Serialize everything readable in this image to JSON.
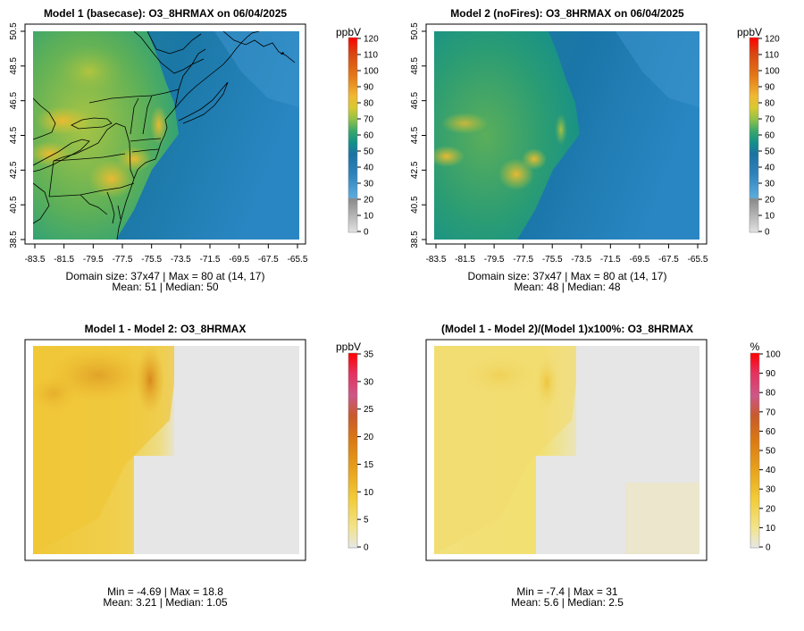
{
  "chart_data": [
    {
      "type": "heatmap",
      "title": "Model 1 (basecase): O3_8HRMAX on 06/04/2025",
      "x_tick_labels": [
        "-83.5",
        "-81.5",
        "-79.5",
        "-77.5",
        "-75.5",
        "-73.5",
        "-71.5",
        "-69.5",
        "-67.5",
        "-65.5"
      ],
      "y_tick_labels": [
        "38.5",
        "40.5",
        "42.5",
        "44.5",
        "46.5",
        "48.5",
        "50.5"
      ],
      "xlim": [
        -84,
        -65
      ],
      "ylim": [
        38.5,
        50.5
      ],
      "unit": "ppbV",
      "colorbar_ticks": [
        "0",
        "10",
        "20",
        "30",
        "40",
        "50",
        "60",
        "70",
        "80",
        "90",
        "100",
        "110",
        "120"
      ],
      "colorbar_range": [
        0,
        120
      ],
      "domain_line": "Domain size: 37x47 | Max = 80 at (14, 17)",
      "stats_line": "Mean: 51 |  Median: 50",
      "stats": {
        "max": 80,
        "mean": 51,
        "median": 50
      }
    },
    {
      "type": "heatmap",
      "title": "Model 2 (noFires): O3_8HRMAX on 06/04/2025",
      "x_tick_labels": [
        "-83.5",
        "-81.5",
        "-79.5",
        "-77.5",
        "-75.5",
        "-73.5",
        "-71.5",
        "-69.5",
        "-67.5",
        "-65.5"
      ],
      "y_tick_labels": [
        "38.5",
        "40.5",
        "42.5",
        "44.5",
        "46.5",
        "48.5",
        "50.5"
      ],
      "xlim": [
        -84,
        -65
      ],
      "ylim": [
        38.5,
        50.5
      ],
      "unit": "ppbV",
      "colorbar_ticks": [
        "0",
        "10",
        "20",
        "30",
        "40",
        "50",
        "60",
        "70",
        "80",
        "90",
        "100",
        "110",
        "120"
      ],
      "colorbar_range": [
        0,
        120
      ],
      "domain_line": "Domain size: 37x47 | Max = 80 at (14, 17)",
      "stats_line": "Mean: 48 |  Median: 48",
      "stats": {
        "max": 80,
        "mean": 48,
        "median": 48
      }
    },
    {
      "type": "heatmap",
      "title": "Model 1 - Model 2: O3_8HRMAX",
      "unit": "ppbV",
      "colorbar_ticks": [
        "0",
        "5",
        "10",
        "15",
        "20",
        "25",
        "30",
        "35"
      ],
      "colorbar_range": [
        0,
        35
      ],
      "minmax_line": "Min = -4.69 | Max = 18.8",
      "stats_line": "Mean: 3.21 |  Median: 1.05",
      "stats": {
        "min": -4.69,
        "max": 18.8,
        "mean": 3.21,
        "median": 1.05
      }
    },
    {
      "type": "heatmap",
      "title": "(Model 1 - Model 2)/(Model 1)x100%: O3_8HRMAX",
      "unit": "%",
      "colorbar_ticks": [
        "0",
        "10",
        "20",
        "30",
        "40",
        "50",
        "60",
        "70",
        "80",
        "90",
        "100"
      ],
      "colorbar_range": [
        0,
        100
      ],
      "minmax_line": "Min = -7.4 | Max = 31",
      "stats_line": "Mean: 5.6 |  Median: 2.5",
      "stats": {
        "min": -7.4,
        "max": 31,
        "mean": 5.6,
        "median": 2.5
      }
    }
  ],
  "colors": {
    "conc_stops": [
      "#e2e2e2",
      "#b4b4b4",
      "#8c8c8c",
      "#4a9fd8",
      "#2e7fb8",
      "#1a70a0",
      "#12908a",
      "#3aa66a",
      "#8cc048",
      "#d8c830",
      "#f2b830",
      "#e87a18",
      "#d94010",
      "#ff0000"
    ],
    "diff_stops": [
      "#e6e6e6",
      "#f0e28a",
      "#f0cc38",
      "#e8a820",
      "#dc7e12",
      "#cc5a28",
      "#d0487a",
      "#e83060",
      "#ff0000"
    ]
  }
}
